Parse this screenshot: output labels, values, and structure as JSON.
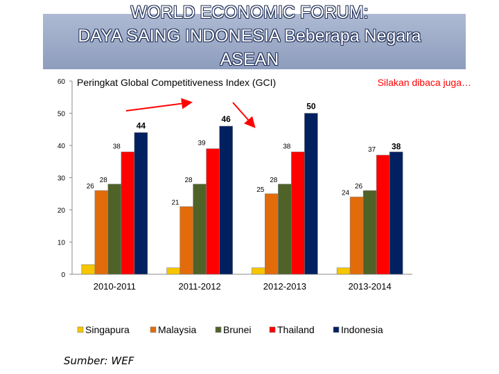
{
  "title": {
    "line1": "WORLD ECONOMIC FORUM:",
    "line2": "DAYA SAING INDONESIA Beberapa Negara",
    "line3": "ASEAN"
  },
  "chart_data": {
    "type": "bar",
    "subtitle": "Peringkat Global Competitiveness Index (GCI)",
    "note": "Silakan dibaca juga…",
    "categories": [
      "2010-2011",
      "2011-2012",
      "2012-2013",
      "2013-2014"
    ],
    "series": [
      {
        "name": "Singapura",
        "color": "#f7c600",
        "values": [
          3,
          2,
          2,
          2
        ],
        "labels": [
          null,
          null,
          null,
          null
        ]
      },
      {
        "name": "Malaysia",
        "color": "#e36c0a",
        "values": [
          26,
          21,
          25,
          24
        ],
        "labels": [
          "26",
          "21",
          "25",
          "24"
        ]
      },
      {
        "name": "Brunei",
        "color": "#4f6228",
        "values": [
          28,
          28,
          28,
          26
        ],
        "labels": [
          "28",
          "28",
          "28",
          "26"
        ]
      },
      {
        "name": "Thailand",
        "color": "#ff0000",
        "values": [
          38,
          39,
          38,
          37
        ],
        "labels": [
          "38",
          "39",
          "38",
          "37"
        ]
      },
      {
        "name": "Indonesia",
        "color": "#002060",
        "values": [
          44,
          46,
          50,
          38
        ],
        "labels": [
          "44",
          "46",
          "50",
          "38"
        ]
      }
    ],
    "ylim": [
      0,
      60
    ],
    "yticks": [
      0,
      10,
      20,
      30,
      40,
      50,
      60
    ],
    "legend": "bottom",
    "annotations": [
      "red arrow 2010-2011 → 2011-2012",
      "red arrow 2011-2012 → 2012-2013"
    ]
  },
  "source": "Sumber: WEF",
  "colors": {
    "arrow": "#ff0000",
    "banner": "#9aa8c6"
  }
}
